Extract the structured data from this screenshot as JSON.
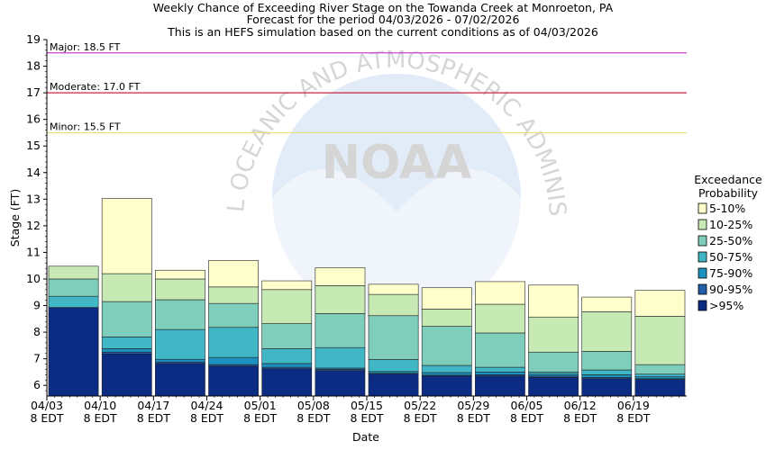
{
  "chart_data": {
    "type": "bar",
    "title_lines": [
      "Weekly Chance of Exceeding River Stage on the Towanda Creek at Monroeton, PA",
      "Forecast for the period 04/03/2026 - 07/02/2026",
      "This is an HEFS simulation based on the current conditions as of 04/03/2026"
    ],
    "xlabel": "Date",
    "ylabel": "Stage (FT)",
    "ylim": [
      5.6,
      19
    ],
    "yticks": [
      6,
      7,
      8,
      9,
      10,
      11,
      12,
      13,
      14,
      15,
      16,
      17,
      18,
      19
    ],
    "xtick_labels": [
      [
        "04/03",
        "8 EDT"
      ],
      [
        "04/10",
        "8 EDT"
      ],
      [
        "04/17",
        "8 EDT"
      ],
      [
        "04/24",
        "8 EDT"
      ],
      [
        "05/01",
        "8 EDT"
      ],
      [
        "05/08",
        "8 EDT"
      ],
      [
        "05/15",
        "8 EDT"
      ],
      [
        "05/22",
        "8 EDT"
      ],
      [
        "05/29",
        "8 EDT"
      ],
      [
        "06/05",
        "8 EDT"
      ],
      [
        "06/12",
        "8 EDT"
      ],
      [
        "06/19",
        "8 EDT"
      ]
    ],
    "thresholds": [
      {
        "label": "Major: 18.5 FT",
        "value": 18.5,
        "color": "#cc44cc"
      },
      {
        "label": "Moderate: 17.0 FT",
        "value": 17.0,
        "color": "#cc2244"
      },
      {
        "label": "Minor: 15.5 FT",
        "value": 15.5,
        "color": "#e6e07a"
      }
    ],
    "legend": {
      "title_lines": [
        "Exceedance",
        "Probability"
      ],
      "position": "right",
      "items": [
        {
          "label": "5-10%",
          "color": "#ffffcc"
        },
        {
          "label": "10-25%",
          "color": "#c7e9b4"
        },
        {
          "label": "25-50%",
          "color": "#7fcdbb"
        },
        {
          "label": "50-75%",
          "color": "#41b6c4"
        },
        {
          "label": "75-90%",
          "color": "#1d91c0"
        },
        {
          "label": "90-95%",
          "color": "#225ea8"
        },
        {
          "label": ">95%",
          "color": "#0c2c84"
        }
      ]
    },
    "series_note": "Each week: stage thresholds [>95%, 90-95%, 75-90%, 50-75%, 25-50%, 10-25%, 5-10%] (top of each band, FT)",
    "weeks": [
      [
        8.93,
        8.93,
        8.93,
        9.35,
        10.0,
        10.48,
        10.48
      ],
      [
        7.18,
        7.25,
        7.38,
        7.82,
        9.15,
        10.2,
        13.03
      ],
      [
        6.82,
        6.88,
        6.98,
        8.1,
        9.22,
        10.0,
        10.33
      ],
      [
        6.72,
        6.78,
        7.05,
        8.18,
        9.08,
        9.7,
        10.7
      ],
      [
        6.62,
        6.68,
        6.82,
        7.38,
        8.32,
        9.6,
        9.93
      ],
      [
        6.55,
        6.6,
        6.65,
        7.42,
        8.7,
        9.75,
        10.42
      ],
      [
        6.42,
        6.45,
        6.52,
        6.97,
        8.62,
        9.42,
        9.8
      ],
      [
        6.35,
        6.38,
        6.48,
        6.75,
        8.22,
        8.87,
        9.67
      ],
      [
        6.35,
        6.4,
        6.5,
        6.68,
        7.97,
        9.05,
        9.9
      ],
      [
        6.3,
        6.35,
        6.42,
        6.5,
        7.25,
        8.57,
        9.77
      ],
      [
        6.25,
        6.3,
        6.4,
        6.58,
        7.28,
        8.77,
        9.32
      ],
      [
        6.22,
        6.25,
        6.32,
        6.42,
        6.78,
        8.6,
        9.57
      ]
    ],
    "watermark": {
      "text": "NOAA",
      "ring_text": "NATIONAL OCEANIC AND ATMOSPHERIC ADMINISTRATION"
    },
    "grid": false
  }
}
